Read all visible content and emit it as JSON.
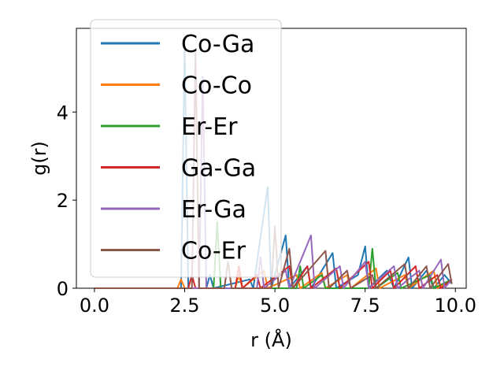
{
  "chart_data": {
    "type": "line",
    "title": "",
    "xlabel": "r (Å)",
    "ylabel": "g(r)",
    "xlim": [
      -0.5,
      10.3
    ],
    "ylim": [
      0,
      5.9
    ],
    "xticks": [
      0.0,
      2.5,
      5.0,
      7.5,
      10.0
    ],
    "xtick_labels": [
      "0.0",
      "2.5",
      "5.0",
      "7.5",
      "10.0"
    ],
    "yticks": [
      0,
      2,
      4
    ],
    "ytick_labels": [
      "0",
      "2",
      "4"
    ],
    "legend_position": "upper-left",
    "grid": false,
    "series": [
      {
        "name": "Co-Ga",
        "color": "#1f77b4",
        "points": [
          [
            0,
            0
          ],
          [
            2.4,
            0
          ],
          [
            2.5,
            5.5
          ],
          [
            2.6,
            0
          ],
          [
            3.1,
            0
          ],
          [
            3.2,
            0.3
          ],
          [
            3.3,
            0
          ],
          [
            4.3,
            0.2
          ],
          [
            4.4,
            0
          ],
          [
            4.8,
            2.3
          ],
          [
            4.9,
            0
          ],
          [
            5.3,
            1.2
          ],
          [
            5.4,
            0
          ],
          [
            5.9,
            0.5
          ],
          [
            6.0,
            0
          ],
          [
            6.6,
            0.8
          ],
          [
            6.7,
            0
          ],
          [
            7.3,
            0.3
          ],
          [
            7.5,
            0.95
          ],
          [
            7.6,
            0
          ],
          [
            8.1,
            0.4
          ],
          [
            8.3,
            0
          ],
          [
            8.7,
            0.7
          ],
          [
            8.8,
            0
          ],
          [
            9.2,
            0.4
          ],
          [
            9.4,
            0
          ],
          [
            9.7,
            0.3
          ],
          [
            9.9,
            0.1
          ]
        ]
      },
      {
        "name": "Co-Co",
        "color": "#ff7f0e",
        "points": [
          [
            0,
            0
          ],
          [
            2.3,
            0
          ],
          [
            2.4,
            0.2
          ],
          [
            2.5,
            0
          ],
          [
            3.9,
            0
          ],
          [
            4.0,
            0.3
          ],
          [
            4.1,
            0
          ],
          [
            4.7,
            0.4
          ],
          [
            4.8,
            0
          ],
          [
            5.6,
            0.3
          ],
          [
            5.7,
            0
          ],
          [
            6.3,
            0.35
          ],
          [
            6.4,
            0
          ],
          [
            7.0,
            0.3
          ],
          [
            7.1,
            0
          ],
          [
            7.8,
            0.45
          ],
          [
            7.9,
            0
          ],
          [
            8.6,
            0.3
          ],
          [
            8.7,
            0
          ],
          [
            9.4,
            0.4
          ],
          [
            9.5,
            0
          ],
          [
            9.9,
            0.2
          ]
        ]
      },
      {
        "name": "Er-Er",
        "color": "#2ca02c",
        "points": [
          [
            0,
            0
          ],
          [
            3.3,
            0
          ],
          [
            3.4,
            1.5
          ],
          [
            3.5,
            0
          ],
          [
            5.6,
            0
          ],
          [
            5.7,
            0.5
          ],
          [
            5.8,
            0
          ],
          [
            6.3,
            0.3
          ],
          [
            6.4,
            0
          ],
          [
            7.6,
            0
          ],
          [
            7.7,
            0.9
          ],
          [
            7.8,
            0
          ],
          [
            8.4,
            0.35
          ],
          [
            8.5,
            0
          ],
          [
            9.3,
            0.3
          ],
          [
            9.4,
            0
          ],
          [
            9.9,
            0.2
          ]
        ]
      },
      {
        "name": "Ga-Ga",
        "color": "#d62728",
        "points": [
          [
            0,
            0
          ],
          [
            2.6,
            0
          ],
          [
            2.7,
            0.3
          ],
          [
            2.8,
            0
          ],
          [
            3.9,
            0
          ],
          [
            4.0,
            0.5
          ],
          [
            4.1,
            0
          ],
          [
            4.5,
            0.3
          ],
          [
            4.6,
            0
          ],
          [
            5.4,
            0.5
          ],
          [
            5.5,
            0
          ],
          [
            5.9,
            0.5
          ],
          [
            6.0,
            0
          ],
          [
            6.7,
            0.45
          ],
          [
            6.8,
            0
          ],
          [
            7.6,
            0.6
          ],
          [
            7.7,
            0
          ],
          [
            8.2,
            0.4
          ],
          [
            8.3,
            0
          ],
          [
            8.9,
            0.5
          ],
          [
            9.0,
            0
          ],
          [
            9.5,
            0.3
          ],
          [
            9.6,
            0
          ],
          [
            9.9,
            0.2
          ]
        ]
      },
      {
        "name": "Er-Ga",
        "color": "#9467bd",
        "points": [
          [
            0,
            0
          ],
          [
            2.9,
            0
          ],
          [
            3.0,
            4.8
          ],
          [
            3.1,
            0
          ],
          [
            4.5,
            0
          ],
          [
            4.6,
            0.7
          ],
          [
            4.7,
            0
          ],
          [
            5.3,
            0.4
          ],
          [
            5.4,
            0
          ],
          [
            6.0,
            1.2
          ],
          [
            6.1,
            0
          ],
          [
            6.8,
            0.5
          ],
          [
            6.9,
            0
          ],
          [
            7.5,
            0.6
          ],
          [
            7.6,
            0
          ],
          [
            8.3,
            0.5
          ],
          [
            8.4,
            0
          ],
          [
            9.0,
            0.4
          ],
          [
            9.1,
            0
          ],
          [
            9.6,
            0.65
          ],
          [
            9.7,
            0
          ],
          [
            9.9,
            0.2
          ]
        ]
      },
      {
        "name": "Co-Er",
        "color": "#8c564b",
        "points": [
          [
            0,
            0
          ],
          [
            2.7,
            0
          ],
          [
            2.8,
            5.4
          ],
          [
            2.9,
            0
          ],
          [
            3.6,
            0
          ],
          [
            3.7,
            0.6
          ],
          [
            3.8,
            0
          ],
          [
            4.9,
            0
          ],
          [
            5.0,
            1.4
          ],
          [
            5.1,
            0
          ],
          [
            5.4,
            0.9
          ],
          [
            5.5,
            0
          ],
          [
            6.4,
            0.85
          ],
          [
            6.5,
            0
          ],
          [
            7.0,
            0.4
          ],
          [
            7.1,
            0
          ],
          [
            7.7,
            0.3
          ],
          [
            7.8,
            0
          ],
          [
            8.6,
            0.55
          ],
          [
            8.7,
            0
          ],
          [
            9.2,
            0.5
          ],
          [
            9.3,
            0
          ],
          [
            9.8,
            0.55
          ],
          [
            9.9,
            0.1
          ]
        ]
      }
    ]
  }
}
